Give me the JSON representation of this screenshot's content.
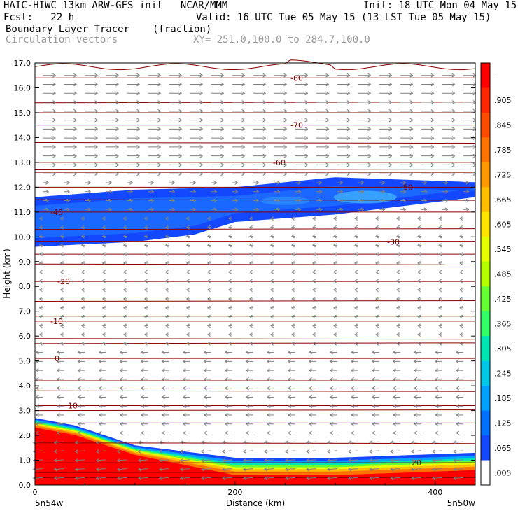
{
  "header": {
    "model": "HAIC-HIWC 13km ARW-GFS init   NCAR/MMM",
    "init": "Init: 18 UTC Mon 04 May 15",
    "fcst": "Fcst:   22 h",
    "valid": "Valid: 16 UTC Tue 05 May 15 (13 LST Tue 05 May 15)",
    "field": "Boundary Layer Tracer",
    "units": "(fraction)",
    "vectors": "Circulation vectors",
    "xy": "XY= 251.0,100.0 to 284.7,100.0"
  },
  "chart_data": {
    "type": "heatmap",
    "title": "Boundary Layer Tracer",
    "units": "(fraction)",
    "xlabel": "Distance (km)",
    "ylabel": "Height (km)",
    "xlim": [
      0,
      440
    ],
    "ylim": [
      0,
      17
    ],
    "x_ticks": [
      "0",
      "200",
      "400"
    ],
    "y_ticks": [
      "0.0",
      "1.0",
      "2.0",
      "3.0",
      "4.0",
      "5.0",
      "6.0",
      "7.0",
      "8.0",
      "9.0",
      "10.0",
      "11.0",
      "12.0",
      "13.0",
      "14.0",
      "15.0",
      "16.0",
      "17.0"
    ],
    "x_end_labels": {
      "left": "5n54w",
      "right": "5n50w"
    },
    "colorbar": {
      "labels": [
        "-",
        ".905",
        ".845",
        ".785",
        ".725",
        ".665",
        ".605",
        ".545",
        ".485",
        ".425",
        ".365",
        ".305",
        ".245",
        ".185",
        ".125",
        ".065",
        ".005"
      ],
      "colors": [
        "#ff0000",
        "#ff2600",
        "#ff4c00",
        "#ff7300",
        "#ff9900",
        "#ffbf00",
        "#ffe500",
        "#e6ff00",
        "#b3ff00",
        "#66ff33",
        "#33ff66",
        "#00e6b3",
        "#00c8e6",
        "#00a0ff",
        "#0070ff",
        "#1448ff",
        "#ffffff"
      ]
    },
    "contours": [
      {
        "label": "-80",
        "height_km": 16.4
      },
      {
        "label": "-70",
        "height_km": 14.5
      },
      {
        "label": "-60",
        "height_km": 13.0
      },
      {
        "label": "-50",
        "height_km": 12.0
      },
      {
        "label": "-40",
        "height_km": 11.0
      },
      {
        "label": "-30",
        "height_km": 9.8
      },
      {
        "label": "-20",
        "height_km": 8.2
      },
      {
        "label": "-10",
        "height_km": 6.6
      },
      {
        "label": "0",
        "height_km": 5.1
      },
      {
        "label": "10",
        "height_km": 3.2
      },
      {
        "label": "20",
        "height_km": 0.9
      }
    ],
    "upper_tracer_top_km": [
      [
        0,
        11.6
      ],
      [
        100,
        11.9
      ],
      [
        200,
        12.0
      ],
      [
        300,
        12.4
      ],
      [
        440,
        12.2
      ]
    ],
    "upper_tracer_bottom_km": [
      [
        0,
        9.6
      ],
      [
        100,
        9.8
      ],
      [
        160,
        10.1
      ],
      [
        200,
        10.6
      ],
      [
        300,
        10.9
      ],
      [
        440,
        11.6
      ]
    ],
    "lower_tracer_top_km": [
      [
        0,
        2.7
      ],
      [
        40,
        2.4
      ],
      [
        100,
        1.6
      ],
      [
        200,
        1.1
      ],
      [
        300,
        1.1
      ],
      [
        440,
        1.3
      ]
    ]
  }
}
